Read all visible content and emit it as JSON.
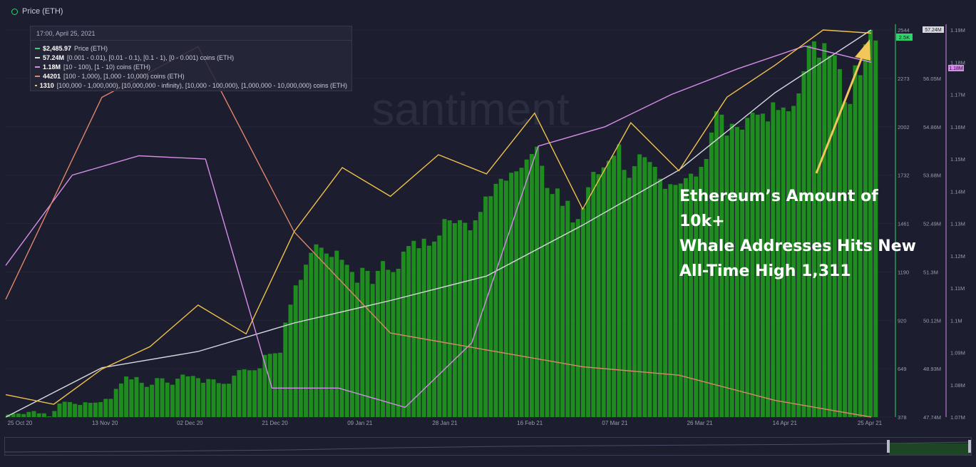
{
  "legend_toggle": {
    "label": "Price (ETH)",
    "icon": "eye-toggle-icon"
  },
  "tooltip": {
    "date": "17:00, April 25, 2021",
    "rows": [
      {
        "value": "$2,485.97",
        "label": "Price (ETH)",
        "color": "#2bd66a"
      },
      {
        "value": "57.24M",
        "label": "[0.001 - 0.01), [0.01 - 0.1), [0.1 - 1), [0 - 0.001) coins (ETH)",
        "color": "#d8d8e0"
      },
      {
        "value": "1.18M",
        "label": "[10 - 100), [1 - 10) coins (ETH)",
        "color": "#d58de8"
      },
      {
        "value": "44201",
        "label": "[100 - 1,000), [1,000 - 10,000) coins (ETH)",
        "color": "#e0866a"
      },
      {
        "value": "1310",
        "label": "[100,000 - 1,000,000), [10,000,000 - infinity), [10,000 - 100,000), [1,000,000 - 10,000,000) coins (ETH)",
        "color": "#f0c24b"
      }
    ]
  },
  "watermark": "santiment",
  "annotation": {
    "lines": [
      "Ethereum’s Amount of 10k+",
      "Whale Addresses Hits New",
      "All-Time High 1,311"
    ]
  },
  "chart_data": {
    "type": "bar",
    "x_ticks": [
      "25 Oct 20",
      "13 Nov 20",
      "02 Dec 20",
      "21 Dec 20",
      "09 Jan 21",
      "28 Jan 21",
      "16 Feb 21",
      "07 Mar 21",
      "26 Mar 21",
      "14 Apr 21",
      "25 Apr 21"
    ],
    "axes": {
      "price": {
        "ticks": [
          "378",
          "649",
          "920",
          "1190",
          "1461",
          "1732",
          "2002",
          "2273",
          "2544"
        ],
        "ylim": [
          378,
          2544
        ],
        "badge": "2.5K",
        "color": "#2bd66a"
      },
      "small_holders": {
        "ticks": [
          "47.74M",
          "48.93M",
          "50.12M",
          "51.3M",
          "52.49M",
          "53.68M",
          "54.86M",
          "56.05M",
          "57.1M"
        ],
        "ylim": [
          47.74,
          57.24
        ],
        "badge": "57.24M"
      },
      "medium_holders": {
        "ticks": [
          "1.07M",
          "1.08M",
          "1.09M",
          "1.1M",
          "1.11M",
          "1.12M",
          "1.13M",
          "1.14M",
          "1.15M",
          "1.16M",
          "1.17M",
          "1.18M",
          "1.19M"
        ],
        "ylim": [
          1.07,
          1.19
        ],
        "badge": "1.18M",
        "color": "#d58de8"
      }
    },
    "series": [
      {
        "name": "Price (ETH)",
        "type": "bar",
        "color": "#1e8c1e",
        "values": [
          392,
          398,
          398,
          395,
          407,
          412,
          399,
          399,
          382,
          412,
          454,
          464,
          462,
          452,
          446,
          461,
          458,
          459,
          462,
          480,
          480,
          536,
          566,
          605,
          589,
          602,
          570,
          547,
          559,
          596,
          595,
          571,
          559,
          593,
          616,
          606,
          608,
          596,
          570,
          591,
          589,
          568,
          564,
          565,
          610,
          641,
          645,
          640,
          640,
          651,
          726,
          732,
          735,
          738,
          907,
          1007,
          1115,
          1146,
          1231,
          1297,
          1344,
          1326,
          1293,
          1274,
          1309,
          1258,
          1230,
          1190,
          1130,
          1213,
          1196,
          1123,
          1196,
          1251,
          1202,
          1189,
          1208,
          1304,
          1335,
          1364,
          1323,
          1376,
          1337,
          1360,
          1394,
          1486,
          1479,
          1463,
          1480,
          1465,
          1423,
          1479,
          1526,
          1612,
          1614,
          1683,
          1711,
          1701,
          1745,
          1753,
          1773,
          1819,
          1850,
          1891,
          1784,
          1660,
          1626,
          1657,
          1560,
          1588,
          1467,
          1486,
          1548,
          1664,
          1750,
          1737,
          1775,
          1812,
          1841,
          1904,
          1761,
          1717,
          1782,
          1848,
          1832,
          1805,
          1778,
          1712,
          1655,
          1681,
          1677,
          1685,
          1715,
          1740,
          1724,
          1778,
          1822,
          1970,
          2089,
          2070,
          1953,
          2019,
          2001,
          1986,
          2052,
          2081,
          2070,
          2076,
          2032,
          2139,
          2096,
          2110,
          2089,
          2119,
          2189,
          2313,
          2457,
          2480,
          2389,
          2470,
          2399,
          2402,
          2325,
          2140,
          2130,
          2346,
          2291,
          2464,
          2544,
          2485
        ]
      },
      {
        "name": "[0.001 - 0.01), [0.01 - 0.1), [0.1 - 1), [0 - 0.001) coins (ETH)",
        "type": "line",
        "axis": "small_holders",
        "color": "#d8d8e0",
        "values": [
          47.74,
          48.95,
          49.35,
          50.05,
          50.6,
          51.2,
          52.45,
          53.8,
          55.7,
          57.24
        ]
      },
      {
        "name": "[10 - 100), [1 - 10) coins (ETH)",
        "type": "line",
        "axis": "medium_holders",
        "color": "#d58de8",
        "values": [
          1.117,
          1.145,
          1.151,
          1.15,
          1.079,
          1.079,
          1.073,
          1.093,
          1.154,
          1.16,
          1.17,
          1.178,
          1.185,
          1.18
        ]
      },
      {
        "name": "[100 - 1,000), [1,000 - 10,000) coins (ETH)",
        "type": "line",
        "color": "#e0866a",
        "values": [
          44900,
          46100,
          46400,
          45300,
          44700,
          44600,
          44500,
          44450,
          44300,
          44201
        ]
      },
      {
        "name": "[100,000 - 1,000,000), [10,000,000 - infinity), [10,000 - 100,000), [1,000,000 - 10,000,000) coins (ETH)",
        "type": "line",
        "color": "#f0c24b",
        "values": [
          1197,
          1194,
          1205,
          1212,
          1225,
          1216,
          1248,
          1268,
          1259,
          1272,
          1266,
          1285,
          1255,
          1282,
          1267,
          1290,
          1300,
          1311,
          1310
        ]
      }
    ]
  }
}
